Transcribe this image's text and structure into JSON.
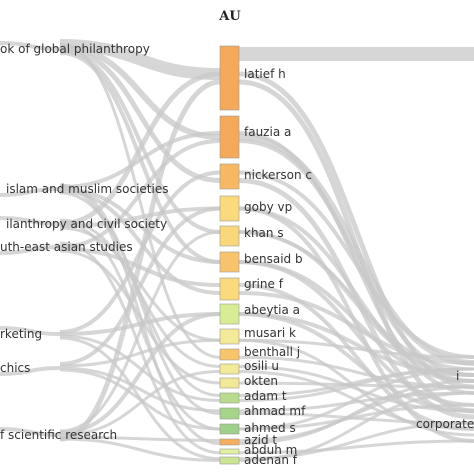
{
  "chart_data": {
    "type": "sankey",
    "title": "AU",
    "left_labels": [
      "ok of global philanthropy",
      "islam and muslim societies",
      "ilanthropy and civil society",
      "uth-east asian studies",
      "rketing",
      "chics",
      "f scientific research"
    ],
    "authors": [
      {
        "name": "latief h",
        "color": "#f5a95b"
      },
      {
        "name": "fauzia a",
        "color": "#f5a95b"
      },
      {
        "name": "nickerson c",
        "color": "#f7b865"
      },
      {
        "name": "goby vp",
        "color": "#fbd97d"
      },
      {
        "name": "khan s",
        "color": "#fbd77b"
      },
      {
        "name": "bensaid b",
        "color": "#f9c26c"
      },
      {
        "name": "grine f",
        "color": "#fbd97d"
      },
      {
        "name": "abeytia a",
        "color": "#d7ec95"
      },
      {
        "name": "musari k",
        "color": "#f5e99a"
      },
      {
        "name": "benthall j",
        "color": "#f8c46c"
      },
      {
        "name": "osili u",
        "color": "#f3ea99"
      },
      {
        "name": "okten",
        "color": "#f3e898"
      },
      {
        "name": "adam t",
        "color": "#b9db8d"
      },
      {
        "name": "ahmad mf",
        "color": "#a6d58a"
      },
      {
        "name": "ahmed s",
        "color": "#9fd18a"
      },
      {
        "name": "azid t",
        "color": "#f5ae5f"
      },
      {
        "name": "abduh m",
        "color": "#dff0a0"
      },
      {
        "name": "adenan f",
        "color": "#cbe595"
      }
    ],
    "right_labels": [
      "i",
      "corporate"
    ]
  }
}
